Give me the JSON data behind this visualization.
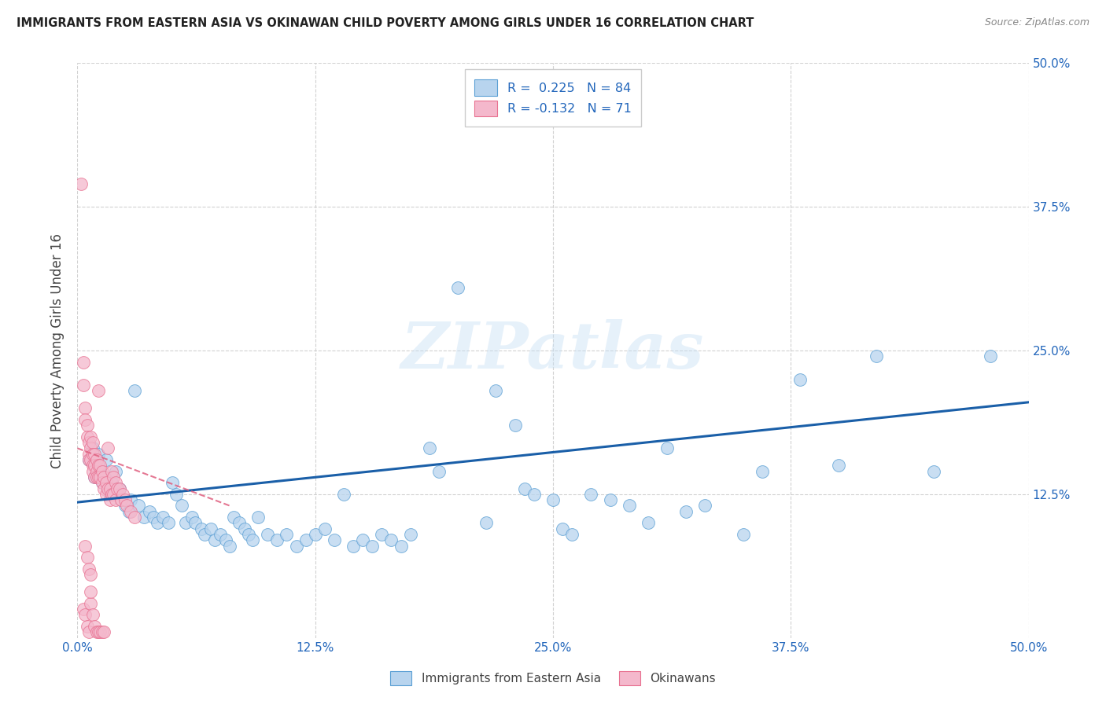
{
  "title": "IMMIGRANTS FROM EASTERN ASIA VS OKINAWAN CHILD POVERTY AMONG GIRLS UNDER 16 CORRELATION CHART",
  "source": "Source: ZipAtlas.com",
  "ylabel": "Child Poverty Among Girls Under 16",
  "xlim": [
    0.0,
    0.5
  ],
  "ylim": [
    0.0,
    0.5
  ],
  "xticks": [
    0.0,
    0.125,
    0.25,
    0.375,
    0.5
  ],
  "yticks": [
    0.125,
    0.25,
    0.375,
    0.5
  ],
  "xticklabels": [
    "0.0%",
    "12.5%",
    "25.0%",
    "37.5%",
    "50.0%"
  ],
  "yticklabels": [
    "12.5%",
    "25.0%",
    "37.5%",
    "50.0%"
  ],
  "blue_R": 0.225,
  "blue_N": 84,
  "pink_R": -0.132,
  "pink_N": 71,
  "blue_color": "#b8d4ee",
  "pink_color": "#f4b8cc",
  "blue_edge_color": "#5a9fd4",
  "pink_edge_color": "#e87090",
  "blue_line_color": "#1a5fa8",
  "pink_line_color": "#e06080",
  "watermark": "ZIPatlas",
  "legend_labels": [
    "Immigrants from Eastern Asia",
    "Okinawans"
  ],
  "blue_trend": [
    0.0,
    0.5,
    0.118,
    0.205
  ],
  "pink_trend": [
    0.0,
    0.08,
    0.165,
    0.115
  ],
  "blue_scatter": [
    [
      0.006,
      0.155
    ],
    [
      0.008,
      0.165
    ],
    [
      0.009,
      0.14
    ],
    [
      0.01,
      0.155
    ],
    [
      0.011,
      0.16
    ],
    [
      0.012,
      0.145
    ],
    [
      0.013,
      0.135
    ],
    [
      0.014,
      0.14
    ],
    [
      0.015,
      0.155
    ],
    [
      0.016,
      0.13
    ],
    [
      0.017,
      0.125
    ],
    [
      0.018,
      0.135
    ],
    [
      0.019,
      0.13
    ],
    [
      0.02,
      0.145
    ],
    [
      0.022,
      0.13
    ],
    [
      0.023,
      0.12
    ],
    [
      0.025,
      0.115
    ],
    [
      0.027,
      0.11
    ],
    [
      0.028,
      0.12
    ],
    [
      0.03,
      0.215
    ],
    [
      0.032,
      0.115
    ],
    [
      0.035,
      0.105
    ],
    [
      0.038,
      0.11
    ],
    [
      0.04,
      0.105
    ],
    [
      0.042,
      0.1
    ],
    [
      0.045,
      0.105
    ],
    [
      0.048,
      0.1
    ],
    [
      0.05,
      0.135
    ],
    [
      0.052,
      0.125
    ],
    [
      0.055,
      0.115
    ],
    [
      0.057,
      0.1
    ],
    [
      0.06,
      0.105
    ],
    [
      0.062,
      0.1
    ],
    [
      0.065,
      0.095
    ],
    [
      0.067,
      0.09
    ],
    [
      0.07,
      0.095
    ],
    [
      0.072,
      0.085
    ],
    [
      0.075,
      0.09
    ],
    [
      0.078,
      0.085
    ],
    [
      0.08,
      0.08
    ],
    [
      0.082,
      0.105
    ],
    [
      0.085,
      0.1
    ],
    [
      0.088,
      0.095
    ],
    [
      0.09,
      0.09
    ],
    [
      0.092,
      0.085
    ],
    [
      0.095,
      0.105
    ],
    [
      0.1,
      0.09
    ],
    [
      0.105,
      0.085
    ],
    [
      0.11,
      0.09
    ],
    [
      0.115,
      0.08
    ],
    [
      0.12,
      0.085
    ],
    [
      0.125,
      0.09
    ],
    [
      0.13,
      0.095
    ],
    [
      0.135,
      0.085
    ],
    [
      0.14,
      0.125
    ],
    [
      0.145,
      0.08
    ],
    [
      0.15,
      0.085
    ],
    [
      0.155,
      0.08
    ],
    [
      0.16,
      0.09
    ],
    [
      0.165,
      0.085
    ],
    [
      0.17,
      0.08
    ],
    [
      0.175,
      0.09
    ],
    [
      0.185,
      0.165
    ],
    [
      0.19,
      0.145
    ],
    [
      0.2,
      0.305
    ],
    [
      0.215,
      0.1
    ],
    [
      0.22,
      0.215
    ],
    [
      0.23,
      0.185
    ],
    [
      0.235,
      0.13
    ],
    [
      0.24,
      0.125
    ],
    [
      0.25,
      0.12
    ],
    [
      0.255,
      0.095
    ],
    [
      0.26,
      0.09
    ],
    [
      0.27,
      0.125
    ],
    [
      0.28,
      0.12
    ],
    [
      0.29,
      0.115
    ],
    [
      0.3,
      0.1
    ],
    [
      0.31,
      0.165
    ],
    [
      0.32,
      0.11
    ],
    [
      0.33,
      0.115
    ],
    [
      0.35,
      0.09
    ],
    [
      0.36,
      0.145
    ],
    [
      0.38,
      0.225
    ],
    [
      0.4,
      0.15
    ],
    [
      0.42,
      0.245
    ],
    [
      0.45,
      0.145
    ],
    [
      0.48,
      0.245
    ]
  ],
  "pink_scatter": [
    [
      0.002,
      0.395
    ],
    [
      0.003,
      0.24
    ],
    [
      0.003,
      0.22
    ],
    [
      0.004,
      0.2
    ],
    [
      0.004,
      0.19
    ],
    [
      0.005,
      0.185
    ],
    [
      0.005,
      0.175
    ],
    [
      0.006,
      0.17
    ],
    [
      0.006,
      0.16
    ],
    [
      0.006,
      0.155
    ],
    [
      0.007,
      0.175
    ],
    [
      0.007,
      0.165
    ],
    [
      0.007,
      0.155
    ],
    [
      0.008,
      0.17
    ],
    [
      0.008,
      0.16
    ],
    [
      0.008,
      0.15
    ],
    [
      0.008,
      0.145
    ],
    [
      0.009,
      0.16
    ],
    [
      0.009,
      0.15
    ],
    [
      0.009,
      0.14
    ],
    [
      0.01,
      0.155
    ],
    [
      0.01,
      0.145
    ],
    [
      0.01,
      0.14
    ],
    [
      0.011,
      0.215
    ],
    [
      0.011,
      0.15
    ],
    [
      0.011,
      0.14
    ],
    [
      0.012,
      0.15
    ],
    [
      0.012,
      0.14
    ],
    [
      0.013,
      0.145
    ],
    [
      0.013,
      0.135
    ],
    [
      0.014,
      0.14
    ],
    [
      0.014,
      0.13
    ],
    [
      0.015,
      0.135
    ],
    [
      0.015,
      0.125
    ],
    [
      0.016,
      0.165
    ],
    [
      0.016,
      0.13
    ],
    [
      0.017,
      0.13
    ],
    [
      0.017,
      0.12
    ],
    [
      0.018,
      0.145
    ],
    [
      0.018,
      0.125
    ],
    [
      0.019,
      0.14
    ],
    [
      0.019,
      0.125
    ],
    [
      0.02,
      0.135
    ],
    [
      0.02,
      0.12
    ],
    [
      0.021,
      0.13
    ],
    [
      0.022,
      0.13
    ],
    [
      0.023,
      0.12
    ],
    [
      0.024,
      0.125
    ],
    [
      0.025,
      0.12
    ],
    [
      0.026,
      0.115
    ],
    [
      0.028,
      0.11
    ],
    [
      0.03,
      0.105
    ],
    [
      0.003,
      0.025
    ],
    [
      0.004,
      0.02
    ],
    [
      0.005,
      0.01
    ],
    [
      0.006,
      0.005
    ],
    [
      0.007,
      0.03
    ],
    [
      0.008,
      0.02
    ],
    [
      0.009,
      0.01
    ],
    [
      0.01,
      0.005
    ],
    [
      0.011,
      0.005
    ],
    [
      0.012,
      0.005
    ],
    [
      0.013,
      0.005
    ],
    [
      0.014,
      0.005
    ],
    [
      0.004,
      0.08
    ],
    [
      0.005,
      0.07
    ],
    [
      0.006,
      0.06
    ],
    [
      0.007,
      0.055
    ],
    [
      0.007,
      0.04
    ]
  ]
}
